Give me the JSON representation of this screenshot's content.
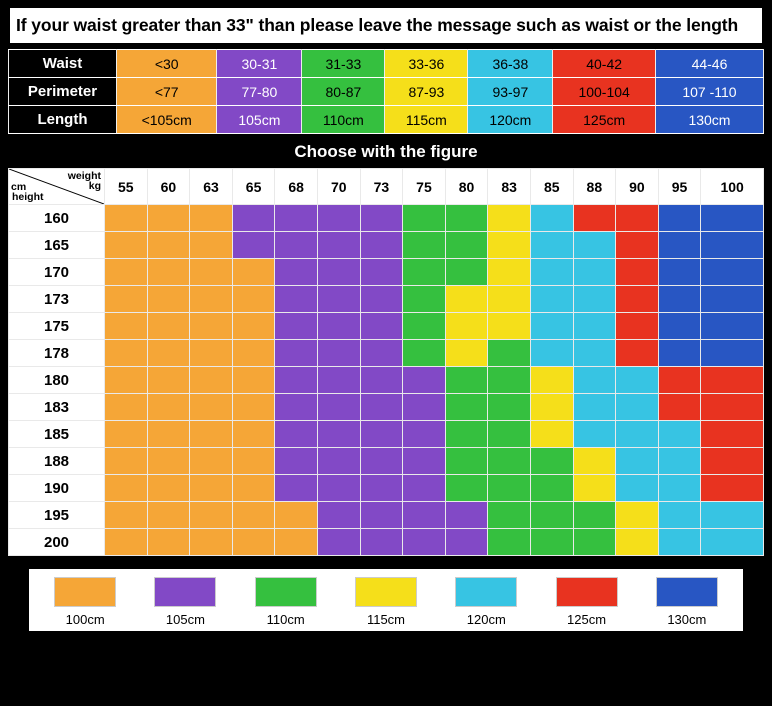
{
  "banner": "If your waist greater than 33\" than please leave the message such as waist or the length",
  "colors": {
    "c1": "#f5a637",
    "c2": "#8249c6",
    "c3": "#35c03f",
    "c4": "#f5df1a",
    "c5": "#37c4e3",
    "c6": "#e83320",
    "c7": "#2856c3",
    "black": "#000000",
    "white": "#ffffff"
  },
  "size_table": {
    "row_labels": [
      "Waist",
      "Perimeter",
      "Length"
    ],
    "cols": [
      {
        "waist": "<30",
        "per": "<77",
        "len": "<105cm",
        "color": "c1"
      },
      {
        "waist": "30-31",
        "per": "77-80",
        "len": "105cm",
        "color": "c2",
        "text": "#fff"
      },
      {
        "waist": "31-33",
        "per": "80-87",
        "len": "110cm",
        "color": "c3"
      },
      {
        "waist": "33-36",
        "per": "87-93",
        "len": "115cm",
        "color": "c4"
      },
      {
        "waist": "36-38",
        "per": "93-97",
        "len": "120cm",
        "color": "c5"
      },
      {
        "waist": "40-42",
        "per": "100-104",
        "len": "125cm",
        "color": "c6"
      },
      {
        "waist": "44-46",
        "per": "107 -110",
        "len": "130cm",
        "color": "c7",
        "text": "#fff"
      }
    ]
  },
  "choose_title": "Choose with the figure",
  "grid": {
    "corner": {
      "weight": "weight",
      "kg": "kg",
      "cm": "cm",
      "height": "height"
    },
    "weights": [
      55,
      60,
      63,
      65,
      68,
      70,
      73,
      75,
      80,
      83,
      85,
      88,
      90,
      95,
      100
    ],
    "heights": [
      160,
      165,
      170,
      173,
      175,
      178,
      180,
      183,
      185,
      188,
      190,
      195,
      200
    ],
    "cells": [
      [
        1,
        1,
        1,
        2,
        2,
        2,
        2,
        3,
        3,
        4,
        5,
        6,
        6,
        7,
        7
      ],
      [
        1,
        1,
        1,
        2,
        2,
        2,
        2,
        3,
        3,
        4,
        5,
        5,
        6,
        7,
        7
      ],
      [
        1,
        1,
        1,
        1,
        2,
        2,
        2,
        3,
        3,
        4,
        5,
        5,
        6,
        7,
        7
      ],
      [
        1,
        1,
        1,
        1,
        2,
        2,
        2,
        3,
        4,
        4,
        5,
        5,
        6,
        7,
        7
      ],
      [
        1,
        1,
        1,
        1,
        2,
        2,
        2,
        3,
        4,
        4,
        5,
        5,
        6,
        7,
        7
      ],
      [
        1,
        1,
        1,
        1,
        2,
        2,
        2,
        3,
        4,
        3,
        5,
        5,
        6,
        7,
        7
      ],
      [
        1,
        1,
        1,
        1,
        2,
        2,
        2,
        2,
        3,
        3,
        4,
        5,
        5,
        6,
        6
      ],
      [
        1,
        1,
        1,
        1,
        2,
        2,
        2,
        2,
        3,
        3,
        4,
        5,
        5,
        6,
        6
      ],
      [
        1,
        1,
        1,
        1,
        2,
        2,
        2,
        2,
        3,
        3,
        4,
        5,
        5,
        5,
        6
      ],
      [
        1,
        1,
        1,
        1,
        2,
        2,
        2,
        2,
        3,
        3,
        3,
        4,
        5,
        5,
        6
      ],
      [
        1,
        1,
        1,
        1,
        2,
        2,
        2,
        2,
        3,
        3,
        3,
        4,
        5,
        5,
        6
      ],
      [
        1,
        1,
        1,
        1,
        1,
        2,
        2,
        2,
        2,
        3,
        3,
        3,
        4,
        5,
        5
      ],
      [
        1,
        1,
        1,
        1,
        1,
        2,
        2,
        2,
        2,
        3,
        3,
        3,
        4,
        5,
        5
      ]
    ]
  },
  "legend": [
    {
      "label": "100cm",
      "color": "c1"
    },
    {
      "label": "105cm",
      "color": "c2"
    },
    {
      "label": "110cm",
      "color": "c3"
    },
    {
      "label": "115cm",
      "color": "c4"
    },
    {
      "label": "120cm",
      "color": "c5"
    },
    {
      "label": "125cm",
      "color": "c6"
    },
    {
      "label": "130cm",
      "color": "c7"
    }
  ]
}
